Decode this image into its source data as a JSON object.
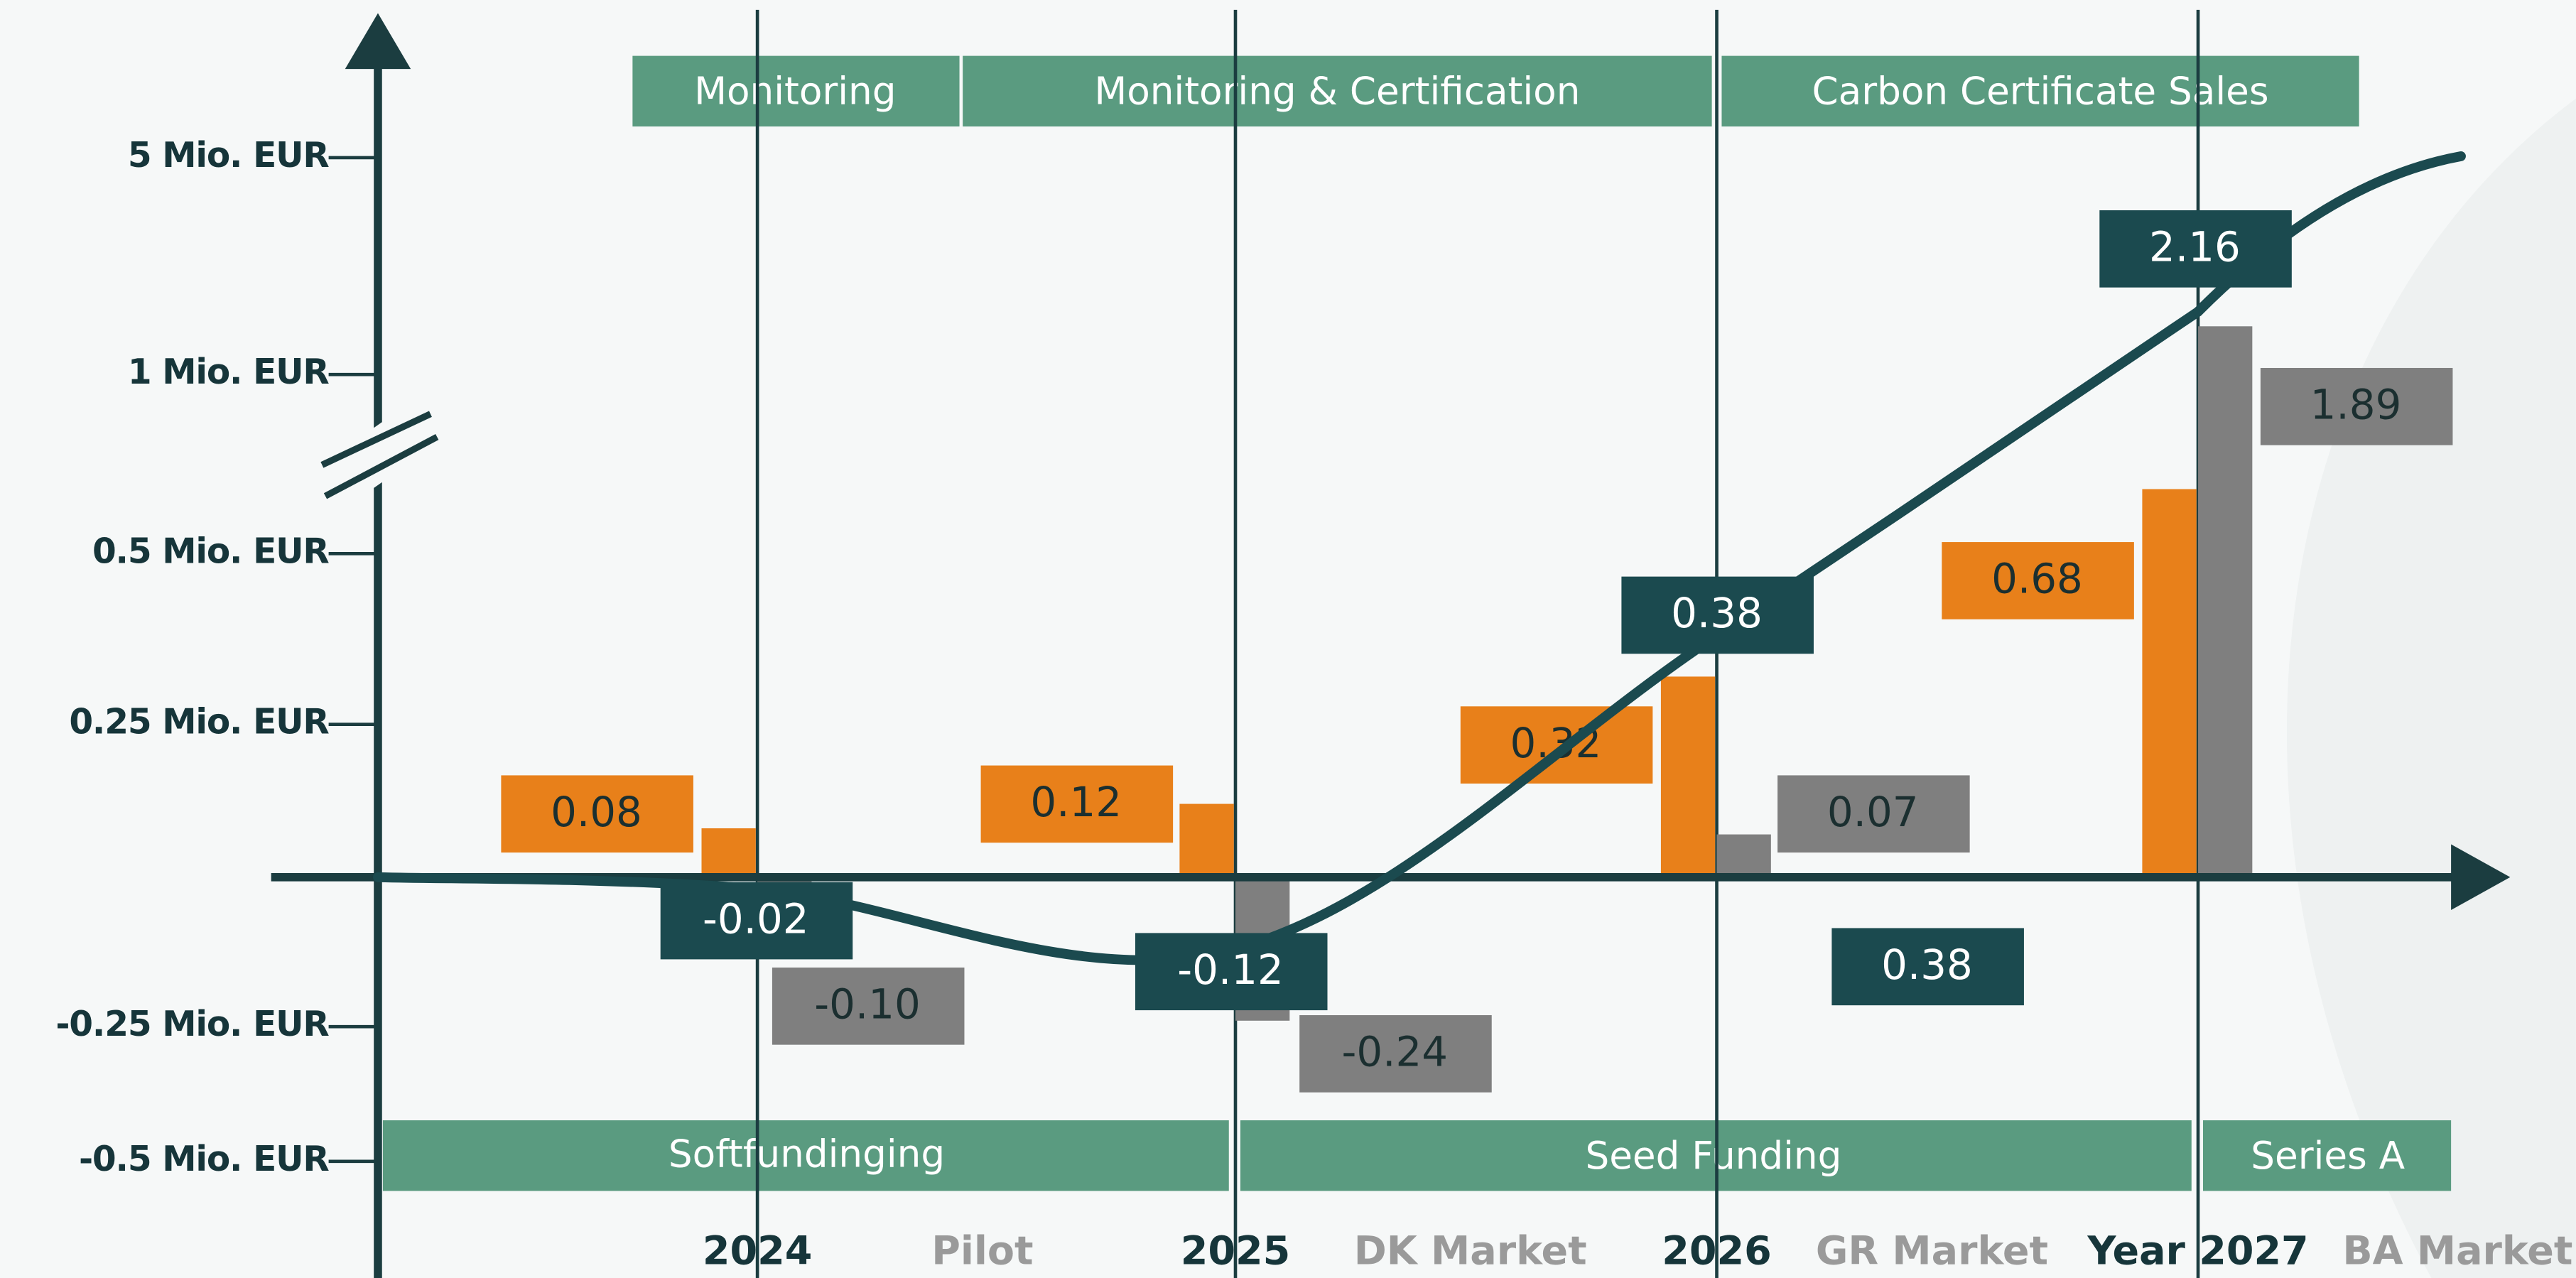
{
  "chart_data": {
    "type": "bar",
    "categories": [
      "2024",
      "2025",
      "2026",
      "Year 2027"
    ],
    "period_labels": [
      "Pilot",
      "DK Market",
      "GR Market",
      "BA Market"
    ],
    "phases_top": [
      "Monitoring",
      "Monitoring & Certification",
      "Carbon Certificate Sales"
    ],
    "phases_bottom": [
      "Softfundinging",
      "Seed Funding",
      "Series A"
    ],
    "series": [
      {
        "type": "bar",
        "color": "#e8801a",
        "values": [
          0.08,
          0.12,
          0.32,
          0.68
        ]
      },
      {
        "type": "bar",
        "color": "#7f7f7f",
        "values": [
          -0.1,
          -0.24,
          0.07,
          1.89
        ],
        "value_labels": [
          "-0.10",
          "-0.24",
          "0.07",
          "1.89"
        ]
      },
      {
        "type": "line",
        "color": "#1b4a4f",
        "values": [
          -0.02,
          -0.12,
          0.38,
          2.16
        ]
      }
    ],
    "annotations": [
      "0.38"
    ],
    "ylim": [
      -0.5,
      5
    ],
    "yticks": [
      {
        "value": -0.5,
        "label": "-0.5 Mio. EUR"
      },
      {
        "value": -0.25,
        "label": "-0.25 Mio. EUR"
      },
      {
        "value": 0.25,
        "label": "0.25 Mio. EUR"
      },
      {
        "value": 0.5,
        "label": "0.5 Mio. EUR"
      },
      {
        "value": 1,
        "label": "1 Mio. EUR"
      },
      {
        "value": 5,
        "label": "5 Mio. EUR"
      }
    ]
  }
}
